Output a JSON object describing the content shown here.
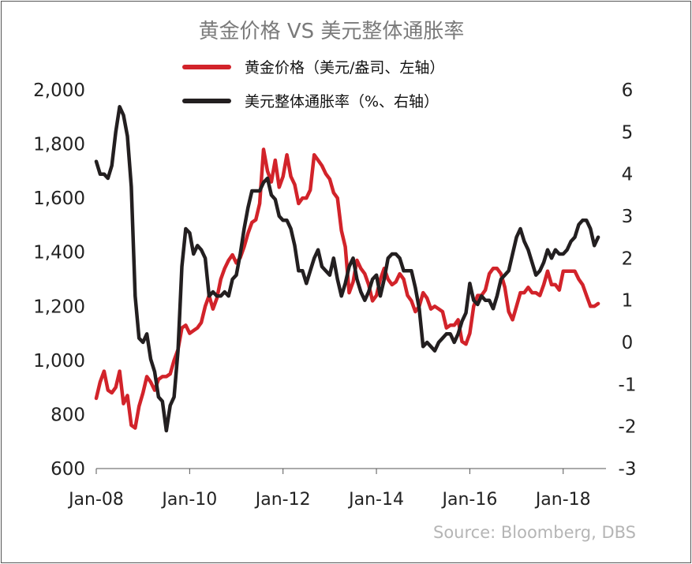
{
  "chart_data": {
    "type": "line",
    "title": "黄金价格 VS 美元整体通胀率",
    "source": "Source: Bloomberg, DBS",
    "x_range": [
      "2008-01",
      "2018-12"
    ],
    "x_ticks": [
      "Jan-08",
      "Jan-10",
      "Jan-12",
      "Jan-14",
      "Jan-16",
      "Jan-18"
    ],
    "y_left": {
      "range": [
        600,
        2000
      ],
      "ticks": [
        "2,000",
        "1,800",
        "1,600",
        "1,400",
        "1,200",
        "1,000",
        "800",
        "600"
      ]
    },
    "y_right": {
      "range": [
        -3,
        6
      ],
      "ticks": [
        "6",
        "5",
        "4",
        "3",
        "2",
        "1",
        "0",
        "-1",
        "-2",
        "-3"
      ]
    },
    "grid": false,
    "legend_position": "top-center",
    "series": [
      {
        "name": "黄金价格（美元/盎司、左轴）",
        "axis": "left",
        "color": "#d2232a",
        "x": [
          "2008-01",
          "2008-02",
          "2008-03",
          "2008-04",
          "2008-05",
          "2008-06",
          "2008-07",
          "2008-08",
          "2008-09",
          "2008-10",
          "2008-11",
          "2008-12",
          "2009-01",
          "2009-02",
          "2009-03",
          "2009-04",
          "2009-05",
          "2009-06",
          "2009-07",
          "2009-08",
          "2009-09",
          "2009-10",
          "2009-11",
          "2009-12",
          "2010-01",
          "2010-02",
          "2010-03",
          "2010-04",
          "2010-05",
          "2010-06",
          "2010-07",
          "2010-08",
          "2010-09",
          "2010-10",
          "2010-11",
          "2010-12",
          "2011-01",
          "2011-02",
          "2011-03",
          "2011-04",
          "2011-05",
          "2011-06",
          "2011-07",
          "2011-08",
          "2011-09",
          "2011-10",
          "2011-11",
          "2011-12",
          "2012-01",
          "2012-02",
          "2012-03",
          "2012-04",
          "2012-05",
          "2012-06",
          "2012-07",
          "2012-08",
          "2012-09",
          "2012-10",
          "2012-11",
          "2012-12",
          "2013-01",
          "2013-02",
          "2013-03",
          "2013-04",
          "2013-05",
          "2013-06",
          "2013-07",
          "2013-08",
          "2013-09",
          "2013-10",
          "2013-11",
          "2013-12",
          "2014-01",
          "2014-02",
          "2014-03",
          "2014-04",
          "2014-05",
          "2014-06",
          "2014-07",
          "2014-08",
          "2014-09",
          "2014-10",
          "2014-11",
          "2014-12",
          "2015-01",
          "2015-02",
          "2015-03",
          "2015-04",
          "2015-05",
          "2015-06",
          "2015-07",
          "2015-08",
          "2015-09",
          "2015-10",
          "2015-11",
          "2015-12",
          "2016-01",
          "2016-02",
          "2016-03",
          "2016-04",
          "2016-05",
          "2016-06",
          "2016-07",
          "2016-08",
          "2016-09",
          "2016-10",
          "2016-11",
          "2016-12",
          "2017-01",
          "2017-02",
          "2017-03",
          "2017-04",
          "2017-05",
          "2017-06",
          "2017-07",
          "2017-08",
          "2017-09",
          "2017-10",
          "2017-11",
          "2017-12",
          "2018-01",
          "2018-02",
          "2018-03",
          "2018-04",
          "2018-05",
          "2018-06",
          "2018-07",
          "2018-08",
          "2018-09",
          "2018-10"
        ],
        "y": [
          860,
          920,
          960,
          890,
          880,
          900,
          960,
          840,
          870,
          760,
          750,
          830,
          880,
          940,
          920,
          890,
          930,
          940,
          940,
          950,
          1000,
          1040,
          1120,
          1130,
          1100,
          1110,
          1120,
          1140,
          1200,
          1240,
          1190,
          1230,
          1300,
          1340,
          1370,
          1390,
          1360,
          1380,
          1420,
          1470,
          1510,
          1520,
          1580,
          1780,
          1700,
          1660,
          1740,
          1640,
          1680,
          1760,
          1680,
          1650,
          1580,
          1600,
          1600,
          1630,
          1760,
          1740,
          1720,
          1690,
          1670,
          1620,
          1600,
          1480,
          1420,
          1250,
          1290,
          1370,
          1340,
          1320,
          1280,
          1220,
          1240,
          1300,
          1340,
          1300,
          1280,
          1290,
          1320,
          1300,
          1240,
          1220,
          1180,
          1200,
          1250,
          1230,
          1190,
          1200,
          1190,
          1180,
          1120,
          1130,
          1130,
          1150,
          1070,
          1060,
          1100,
          1200,
          1240,
          1240,
          1260,
          1320,
          1340,
          1340,
          1320,
          1270,
          1180,
          1150,
          1200,
          1250,
          1250,
          1270,
          1250,
          1250,
          1240,
          1280,
          1330,
          1280,
          1280,
          1260,
          1330,
          1330,
          1330,
          1330,
          1300,
          1280,
          1240,
          1200,
          1200,
          1210
        ]
      },
      {
        "name": "美元整体通胀率（%、右轴）",
        "axis": "right",
        "color": "#231f20",
        "x": [
          "2008-01",
          "2008-02",
          "2008-03",
          "2008-04",
          "2008-05",
          "2008-06",
          "2008-07",
          "2008-08",
          "2008-09",
          "2008-10",
          "2008-11",
          "2008-12",
          "2009-01",
          "2009-02",
          "2009-03",
          "2009-04",
          "2009-05",
          "2009-06",
          "2009-07",
          "2009-08",
          "2009-09",
          "2009-10",
          "2009-11",
          "2009-12",
          "2010-01",
          "2010-02",
          "2010-03",
          "2010-04",
          "2010-05",
          "2010-06",
          "2010-07",
          "2010-08",
          "2010-09",
          "2010-10",
          "2010-11",
          "2010-12",
          "2011-01",
          "2011-02",
          "2011-03",
          "2011-04",
          "2011-05",
          "2011-06",
          "2011-07",
          "2011-08",
          "2011-09",
          "2011-10",
          "2011-11",
          "2011-12",
          "2012-01",
          "2012-02",
          "2012-03",
          "2012-04",
          "2012-05",
          "2012-06",
          "2012-07",
          "2012-08",
          "2012-09",
          "2012-10",
          "2012-11",
          "2012-12",
          "2013-01",
          "2013-02",
          "2013-03",
          "2013-04",
          "2013-05",
          "2013-06",
          "2013-07",
          "2013-08",
          "2013-09",
          "2013-10",
          "2013-11",
          "2013-12",
          "2014-01",
          "2014-02",
          "2014-03",
          "2014-04",
          "2014-05",
          "2014-06",
          "2014-07",
          "2014-08",
          "2014-09",
          "2014-10",
          "2014-11",
          "2014-12",
          "2015-01",
          "2015-02",
          "2015-03",
          "2015-04",
          "2015-05",
          "2015-06",
          "2015-07",
          "2015-08",
          "2015-09",
          "2015-10",
          "2015-11",
          "2015-12",
          "2016-01",
          "2016-02",
          "2016-03",
          "2016-04",
          "2016-05",
          "2016-06",
          "2016-07",
          "2016-08",
          "2016-09",
          "2016-10",
          "2016-11",
          "2016-12",
          "2017-01",
          "2017-02",
          "2017-03",
          "2017-04",
          "2017-05",
          "2017-06",
          "2017-07",
          "2017-08",
          "2017-09",
          "2017-10",
          "2017-11",
          "2017-12",
          "2018-01",
          "2018-02",
          "2018-03",
          "2018-04",
          "2018-05",
          "2018-06",
          "2018-07",
          "2018-08",
          "2018-09",
          "2018-10"
        ],
        "y": [
          4.3,
          4.0,
          4.0,
          3.9,
          4.2,
          5.0,
          5.6,
          5.4,
          4.9,
          3.7,
          1.1,
          0.1,
          0.0,
          0.2,
          -0.4,
          -0.7,
          -1.3,
          -1.4,
          -2.1,
          -1.5,
          -1.3,
          -0.2,
          1.8,
          2.7,
          2.6,
          2.1,
          2.3,
          2.2,
          2.0,
          1.1,
          1.2,
          1.1,
          1.1,
          1.2,
          1.1,
          1.5,
          1.6,
          2.1,
          2.7,
          3.2,
          3.6,
          3.6,
          3.6,
          3.8,
          3.9,
          3.5,
          3.4,
          3.0,
          2.9,
          2.9,
          2.7,
          2.3,
          1.7,
          1.7,
          1.4,
          1.7,
          2.0,
          2.2,
          1.8,
          1.7,
          1.6,
          2.0,
          1.5,
          1.1,
          1.4,
          1.8,
          2.0,
          1.5,
          1.2,
          1.0,
          1.2,
          1.5,
          1.6,
          1.1,
          1.5,
          2.0,
          2.1,
          2.1,
          2.0,
          1.7,
          1.7,
          1.7,
          1.3,
          0.8,
          -0.1,
          0.0,
          -0.1,
          -0.2,
          0.0,
          0.1,
          0.2,
          0.2,
          0.0,
          0.2,
          0.5,
          0.7,
          1.4,
          1.0,
          0.9,
          1.1,
          1.0,
          1.0,
          0.8,
          1.1,
          1.5,
          1.6,
          1.7,
          2.1,
          2.5,
          2.7,
          2.4,
          2.2,
          1.9,
          1.6,
          1.7,
          1.9,
          2.2,
          2.0,
          2.2,
          2.1,
          2.1,
          2.2,
          2.4,
          2.5,
          2.8,
          2.9,
          2.9,
          2.7,
          2.3,
          2.5
        ]
      }
    ]
  }
}
